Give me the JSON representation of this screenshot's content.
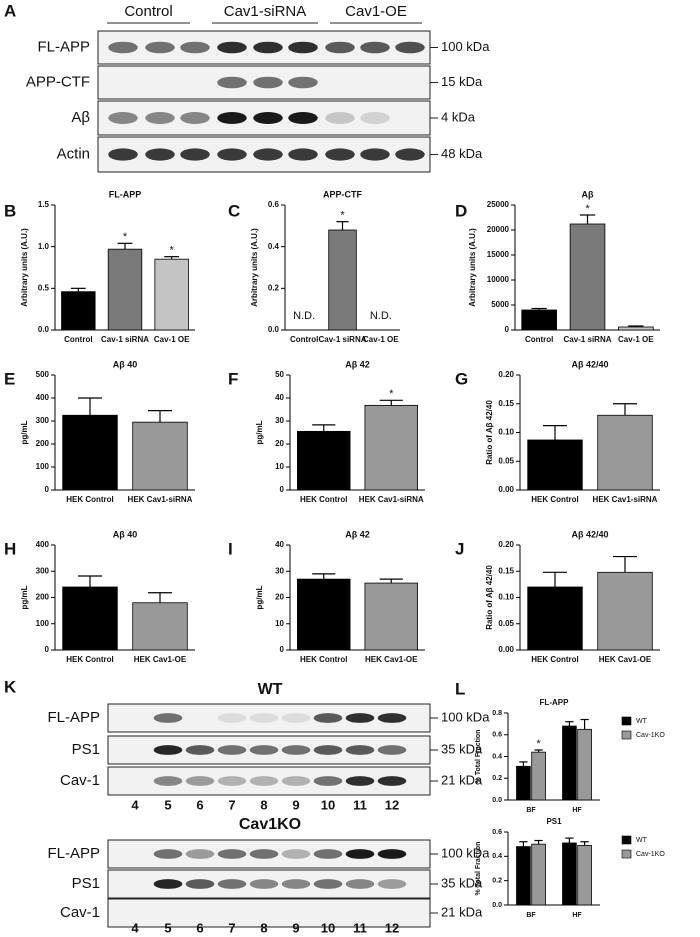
{
  "blots": {
    "A": {
      "panel": "A",
      "groups": [
        "Control",
        "Cav1-siRNA",
        "Cav1-OE"
      ],
      "rows": [
        {
          "label": "FL-APP",
          "size": "100 kDa"
        },
        {
          "label": "APP-CTF",
          "size": "15 kDa"
        },
        {
          "label": "Aβ",
          "size": "4 kDa"
        },
        {
          "label": "Actin",
          "size": "48 kDa"
        }
      ]
    },
    "K": {
      "panel": "K",
      "blots": [
        {
          "title": "WT",
          "rows": [
            {
              "label": "FL-APP",
              "size": "100 kDa"
            },
            {
              "label": "PS1",
              "size": "35 kDa"
            },
            {
              "label": "Cav-1",
              "size": "21 kDa"
            }
          ],
          "lanes": [
            4,
            5,
            6,
            7,
            8,
            9,
            10,
            11,
            12
          ]
        },
        {
          "title": "Cav1KO",
          "rows": [
            {
              "label": "FL-APP",
              "size": "100 kDa"
            },
            {
              "label": "PS1",
              "size": "35 kDa"
            },
            {
              "label": "Cav-1",
              "size": "21 kDa"
            }
          ],
          "lanes": [
            4,
            5,
            6,
            7,
            8,
            9,
            10,
            11,
            12
          ]
        }
      ]
    }
  },
  "chart_data": [
    {
      "type": "bar",
      "panel": "B",
      "title": "FL-APP",
      "y_label": "Arbitrary units (A.U.)",
      "categories": [
        "Control",
        "Cav-1 siRNA",
        "Cav-1 OE"
      ],
      "values": [
        0.46,
        0.97,
        0.85
      ],
      "errors": [
        0.04,
        0.07,
        0.03
      ],
      "colors": [
        "#000000",
        "#7a7a7a",
        "#c4c4c4"
      ],
      "ylim": [
        0,
        1.5
      ],
      "yticks": [
        {
          "value": 0,
          "label": "0.0"
        },
        {
          "value": 0.5,
          "label": "0.5"
        },
        {
          "value": 1,
          "label": "1.0"
        },
        {
          "value": 1.5,
          "label": "1.5"
        }
      ],
      "annotations": [
        {
          "text": "*",
          "x": "Cav-1 siRNA"
        },
        {
          "text": "*",
          "x": "Cav-1 OE"
        }
      ]
    },
    {
      "type": "bar",
      "panel": "C",
      "title": "APP-CTF",
      "y_label": "Arbitrary units (A.U.)",
      "categories": [
        "Control",
        "Cav-1 siRNA",
        "Cav-1 OE"
      ],
      "values": [
        null,
        0.48,
        null
      ],
      "value_labels": [
        "N.D.",
        null,
        "N.D."
      ],
      "errors": [
        null,
        0.04,
        null
      ],
      "colors": [
        "#000000",
        "#7a7a7a",
        "#c4c4c4"
      ],
      "ylim": [
        0,
        0.6
      ],
      "yticks": [
        {
          "value": 0,
          "label": "0.0"
        },
        0.2,
        0.4,
        0.6
      ],
      "annotations": [
        {
          "text": "*",
          "x": "Cav-1 siRNA"
        }
      ]
    },
    {
      "type": "bar",
      "panel": "D",
      "title": "Aβ",
      "y_label": "Arbitrary units (A.U.)",
      "categories": [
        "Control",
        "Cav-1 siRNA",
        "Cav-1 OE"
      ],
      "values": [
        4000,
        21200,
        600
      ],
      "errors": [
        300,
        1800,
        200
      ],
      "colors": [
        "#000000",
        "#7a7a7a",
        "#c4c4c4"
      ],
      "ylim": [
        0,
        25000
      ],
      "yticks": [
        0,
        5000,
        10000,
        15000,
        20000,
        25000
      ],
      "annotations": [
        {
          "text": "*",
          "x": "Cav-1 siRNA"
        }
      ]
    },
    {
      "type": "bar",
      "panel": "E",
      "title": "Aβ 40",
      "y_label": "pg/mL",
      "categories": [
        "HEK Control",
        "HEK Cav1-siRNA"
      ],
      "values": [
        325,
        295
      ],
      "errors": [
        75,
        50
      ],
      "colors": [
        "#000000",
        "#999999"
      ],
      "ylim": [
        0,
        500
      ],
      "yticks": [
        0,
        100,
        200,
        300,
        400,
        500
      ]
    },
    {
      "type": "bar",
      "panel": "F",
      "title": "Aβ 42",
      "y_label": "pg/mL",
      "categories": [
        "HEK Control",
        "HEK Cav1-siRNA"
      ],
      "values": [
        25.5,
        36.8
      ],
      "errors": [
        2.8,
        2.2
      ],
      "colors": [
        "#000000",
        "#999999"
      ],
      "ylim": [
        0,
        50
      ],
      "yticks": [
        0,
        10,
        20,
        30,
        40,
        50
      ],
      "annotations": [
        {
          "text": "*",
          "x": "HEK Cav1-siRNA"
        }
      ]
    },
    {
      "type": "bar",
      "panel": "G",
      "title": "Aβ 42/40",
      "y_label": "Ratio of Aβ 42/40",
      "categories": [
        "HEK Control",
        "HEK Cav1-siRNA"
      ],
      "values": [
        0.087,
        0.13
      ],
      "errors": [
        0.025,
        0.02
      ],
      "colors": [
        "#000000",
        "#999999"
      ],
      "ylim": [
        0,
        0.2
      ],
      "yticks": [
        {
          "value": 0,
          "label": "0.00"
        },
        {
          "value": 0.05,
          "label": "0.05"
        },
        {
          "value": 0.1,
          "label": "0.10"
        },
        {
          "value": 0.15,
          "label": "0.15"
        },
        {
          "value": 0.2,
          "label": "0.20"
        }
      ]
    },
    {
      "type": "bar",
      "panel": "H",
      "title": "Aβ 40",
      "y_label": "pg/mL",
      "categories": [
        "HEK Control",
        "HEK Cav1-OE"
      ],
      "values": [
        240,
        180
      ],
      "errors": [
        42,
        38
      ],
      "colors": [
        "#000000",
        "#999999"
      ],
      "ylim": [
        0,
        400
      ],
      "yticks": [
        0,
        100,
        200,
        300,
        400
      ]
    },
    {
      "type": "bar",
      "panel": "I",
      "title": "Aβ 42",
      "y_label": "pg/mL",
      "categories": [
        "HEK Control",
        "HEK Cav1-OE"
      ],
      "values": [
        27,
        25.5
      ],
      "errors": [
        2,
        1.5
      ],
      "colors": [
        "#000000",
        "#999999"
      ],
      "ylim": [
        0,
        40
      ],
      "yticks": [
        0,
        10,
        20,
        30,
        40
      ]
    },
    {
      "type": "bar",
      "panel": "J",
      "title": "Aβ 42/40",
      "y_label": "Ratio of Aβ 42/40",
      "categories": [
        "HEK Control",
        "HEK Cav1-OE"
      ],
      "values": [
        0.12,
        0.148
      ],
      "errors": [
        0.028,
        0.03
      ],
      "colors": [
        "#000000",
        "#999999"
      ],
      "ylim": [
        0,
        0.2
      ],
      "yticks": [
        {
          "value": 0,
          "label": "0.00"
        },
        {
          "value": 0.05,
          "label": "0.05"
        },
        {
          "value": 0.1,
          "label": "0.10"
        },
        {
          "value": 0.15,
          "label": "0.15"
        },
        {
          "value": 0.2,
          "label": "0.20"
        }
      ]
    },
    {
      "type": "grouped-bar",
      "panel": "L",
      "title": "FL-APP",
      "y_label": "% Total Fraction",
      "categories": [
        "BF",
        "HF"
      ],
      "series": [
        {
          "name": "WT",
          "color": "#000000",
          "values": [
            0.31,
            0.68
          ],
          "errors": [
            0.04,
            0.04
          ]
        },
        {
          "name": "Cav-1KO",
          "color": "#999999",
          "values": [
            0.44,
            0.65
          ],
          "errors": [
            0.02,
            0.09
          ]
        }
      ],
      "ylim": [
        0,
        0.8
      ],
      "yticks": [
        {
          "value": 0,
          "label": "0.0"
        },
        0.2,
        0.4,
        0.6,
        0.8
      ],
      "legend": "right",
      "annotations": [
        {
          "text": "*",
          "x": "BF",
          "series": "Cav-1KO"
        }
      ]
    },
    {
      "type": "grouped-bar",
      "title": "PS1",
      "y_label": "% Total Fraction",
      "categories": [
        "BF",
        "HF"
      ],
      "series": [
        {
          "name": "WT",
          "color": "#000000",
          "values": [
            0.48,
            0.51
          ],
          "errors": [
            0.04,
            0.04
          ]
        },
        {
          "name": "Cav-1KO",
          "color": "#999999",
          "values": [
            0.5,
            0.49
          ],
          "errors": [
            0.03,
            0.03
          ]
        }
      ],
      "ylim": [
        0,
        0.6
      ],
      "yticks": [
        {
          "value": 0,
          "label": "0.0"
        },
        0.2,
        0.4,
        0.6
      ],
      "legend": "right"
    }
  ]
}
